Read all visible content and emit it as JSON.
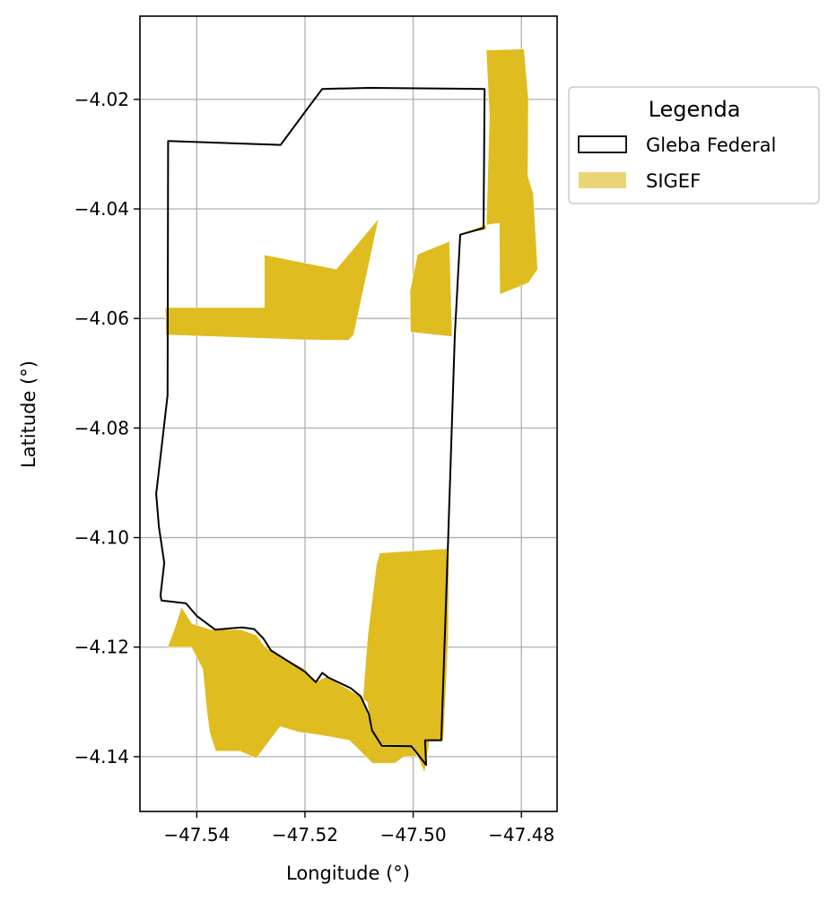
{
  "chart_data": {
    "type": "map",
    "xlabel": "Longitude (°)",
    "ylabel": "Latitude (°)",
    "xlim": [
      -47.5505,
      -47.4734
    ],
    "ylim": [
      -4.15,
      -4.0048
    ],
    "x_ticks": [
      -47.54,
      -47.52,
      -47.5,
      -47.48
    ],
    "x_tick_labels": [
      "−47.54",
      "−47.52",
      "−47.50",
      "−47.48"
    ],
    "y_ticks": [
      -4.02,
      -4.04,
      -4.06,
      -4.08,
      -4.1,
      -4.12,
      -4.14
    ],
    "y_tick_labels": [
      "−4.02",
      "−4.04",
      "−4.06",
      "−4.08",
      "−4.10",
      "−4.12",
      "−4.14"
    ],
    "grid": true,
    "legend": {
      "title": "Legenda",
      "placement": "outside-right-top",
      "entries": [
        "Gleba Federal",
        "SIGEF"
      ]
    },
    "colors": {
      "sigef_fill": "#dfbc1f",
      "sigef_legend": "#e9d577",
      "gleba_edge": "#000000",
      "grid": "#b0b0b0"
    },
    "layers": [
      {
        "name": "Gleba Federal",
        "kind": "outline",
        "polygons": [
          [
            [
              -47.5453,
              -4.0276
            ],
            [
              -47.5245,
              -4.0283
            ],
            [
              -47.5194,
              -4.0215
            ],
            [
              -47.5168,
              -4.0181
            ],
            [
              -47.508,
              -4.0179
            ],
            [
              -47.4968,
              -4.018
            ],
            [
              -47.4868,
              -4.0181
            ],
            [
              -47.487,
              -4.0435
            ],
            [
              -47.4913,
              -4.0447
            ],
            [
              -47.4923,
              -4.063
            ],
            [
              -47.4936,
              -4.102
            ],
            [
              -47.4948,
              -4.137
            ],
            [
              -47.4978,
              -4.137
            ],
            [
              -47.4976,
              -4.1415
            ],
            [
              -47.4996,
              -4.139
            ],
            [
              -47.5003,
              -4.1381
            ],
            [
              -47.5058,
              -4.138
            ],
            [
              -47.5076,
              -4.1352
            ],
            [
              -47.5082,
              -4.1322
            ],
            [
              -47.5097,
              -4.129
            ],
            [
              -47.5115,
              -4.1275
            ],
            [
              -47.5156,
              -4.1256
            ],
            [
              -47.5168,
              -4.1247
            ],
            [
              -47.518,
              -4.1264
            ],
            [
              -47.52,
              -4.1245
            ],
            [
              -47.5263,
              -4.1206
            ],
            [
              -47.5277,
              -4.1184
            ],
            [
              -47.5294,
              -4.1167
            ],
            [
              -47.5316,
              -4.1164
            ],
            [
              -47.5366,
              -4.1168
            ],
            [
              -47.54,
              -4.1143
            ],
            [
              -47.542,
              -4.112
            ],
            [
              -47.5465,
              -4.1115
            ],
            [
              -47.5467,
              -4.1106
            ],
            [
              -47.546,
              -4.1046
            ],
            [
              -47.547,
              -4.098
            ],
            [
              -47.5475,
              -4.092
            ],
            [
              -47.5462,
              -4.081
            ],
            [
              -47.5454,
              -4.074
            ],
            [
              -47.5453,
              -4.0276
            ]
          ]
        ]
      },
      {
        "name": "SIGEF",
        "kind": "fill",
        "polygons": [
          [
            [
              -47.5458,
              -4.058
            ],
            [
              -47.5275,
              -4.058
            ],
            [
              -47.5275,
              -4.0484
            ],
            [
              -47.5142,
              -4.051
            ],
            [
              -47.5064,
              -4.0418
            ],
            [
              -47.511,
              -4.063
            ],
            [
              -47.512,
              -4.064
            ],
            [
              -47.52,
              -4.0639
            ],
            [
              -47.5457,
              -4.063
            ]
          ],
          [
            [
              -47.4992,
              -4.0483
            ],
            [
              -47.4933,
              -4.0459
            ],
            [
              -47.4928,
              -4.0633
            ],
            [
              -47.5005,
              -4.0625
            ],
            [
              -47.5006,
              -4.055
            ]
          ],
          [
            [
              -47.4907,
              -4.0444
            ],
            [
              -47.4865,
              -4.0438
            ],
            [
              -47.4859,
              -4.023
            ],
            [
              -47.4865,
              -4.011
            ],
            [
              -47.4795,
              -4.0108
            ],
            [
              -47.4787,
              -4.02
            ],
            [
              -47.4788,
              -4.034
            ],
            [
              -47.4778,
              -4.0372
            ],
            [
              -47.477,
              -4.051
            ],
            [
              -47.4787,
              -4.0535
            ],
            [
              -47.484,
              -4.0556
            ],
            [
              -47.4841,
              -4.0426
            ],
            [
              -47.487,
              -4.043
            ]
          ],
          [
            [
              -47.5062,
              -4.1028
            ],
            [
              -47.4934,
              -4.102
            ],
            [
              -47.4935,
              -4.118
            ],
            [
              -47.4944,
              -4.137
            ],
            [
              -47.497,
              -4.1371
            ],
            [
              -47.4979,
              -4.1429
            ],
            [
              -47.4995,
              -4.1392
            ],
            [
              -47.5,
              -4.138
            ],
            [
              -47.5059,
              -4.1378
            ],
            [
              -47.5077,
              -4.135
            ],
            [
              -47.5085,
              -4.13
            ],
            [
              -47.5093,
              -4.1295
            ],
            [
              -47.5084,
              -4.118
            ],
            [
              -47.5068,
              -4.105
            ]
          ],
          [
            [
              -47.5454,
              -4.12
            ],
            [
              -47.5443,
              -4.1172
            ],
            [
              -47.5428,
              -4.1127
            ],
            [
              -47.5409,
              -4.1157
            ],
            [
              -47.5374,
              -4.1168
            ],
            [
              -47.5319,
              -4.1168
            ],
            [
              -47.529,
              -4.1178
            ],
            [
              -47.5274,
              -4.1199
            ],
            [
              -47.5266,
              -4.1205
            ],
            [
              -47.52,
              -4.124
            ],
            [
              -47.5182,
              -4.1264
            ],
            [
              -47.516,
              -4.1254
            ],
            [
              -47.5118,
              -4.1278
            ],
            [
              -47.5092,
              -4.1294
            ],
            [
              -47.5077,
              -4.1349
            ],
            [
              -47.5056,
              -4.138
            ],
            [
              -47.5003,
              -4.1381
            ],
            [
              -47.4993,
              -4.1399
            ],
            [
              -47.5017,
              -4.14
            ],
            [
              -47.5034,
              -4.1412
            ],
            [
              -47.5075,
              -4.1412
            ],
            [
              -47.5118,
              -4.137
            ],
            [
              -47.5175,
              -4.136
            ],
            [
              -47.5212,
              -4.1355
            ],
            [
              -47.5246,
              -4.1345
            ],
            [
              -47.529,
              -4.1403
            ],
            [
              -47.532,
              -4.139
            ],
            [
              -47.5365,
              -4.139
            ],
            [
              -47.5376,
              -4.1356
            ],
            [
              -47.5381,
              -4.132
            ],
            [
              -47.5389,
              -4.124
            ],
            [
              -47.541,
              -4.12
            ]
          ]
        ]
      }
    ]
  }
}
